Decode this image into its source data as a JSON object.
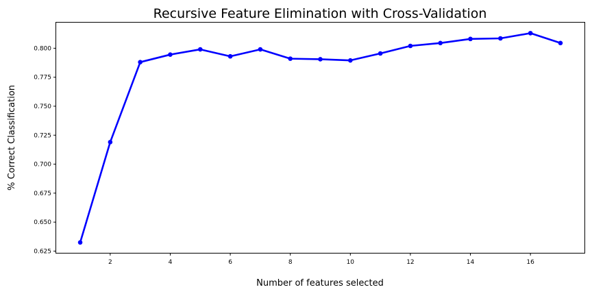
{
  "chart_data": {
    "type": "line",
    "title": "Recursive Feature Elimination with Cross-Validation",
    "xlabel": "Number of features selected",
    "ylabel": "% Correct Classification",
    "x": [
      1,
      2,
      3,
      4,
      5,
      6,
      7,
      8,
      9,
      10,
      11,
      12,
      13,
      14,
      15,
      16,
      17
    ],
    "series": [
      {
        "values": [
          0.6325,
          0.719,
          0.788,
          0.7945,
          0.799,
          0.793,
          0.799,
          0.791,
          0.7905,
          0.7895,
          0.7955,
          0.802,
          0.8045,
          0.808,
          0.8085,
          0.813,
          0.8045
        ],
        "color": "#0000ff"
      }
    ],
    "xticks": [
      2,
      4,
      6,
      8,
      10,
      12,
      14,
      16
    ],
    "xtick_labels": [
      "2",
      "4",
      "6",
      "8",
      "10",
      "12",
      "14",
      "16"
    ],
    "yticks": [
      0.625,
      0.65,
      0.675,
      0.7,
      0.725,
      0.75,
      0.775,
      0.8
    ],
    "ytick_labels": [
      "0.625",
      "0.650",
      "0.675",
      "0.700",
      "0.725",
      "0.750",
      "0.775",
      "0.800"
    ],
    "xlim": [
      0.2,
      17.8
    ],
    "ylim": [
      0.6235,
      0.8221
    ],
    "grid": false,
    "legend": "none"
  }
}
